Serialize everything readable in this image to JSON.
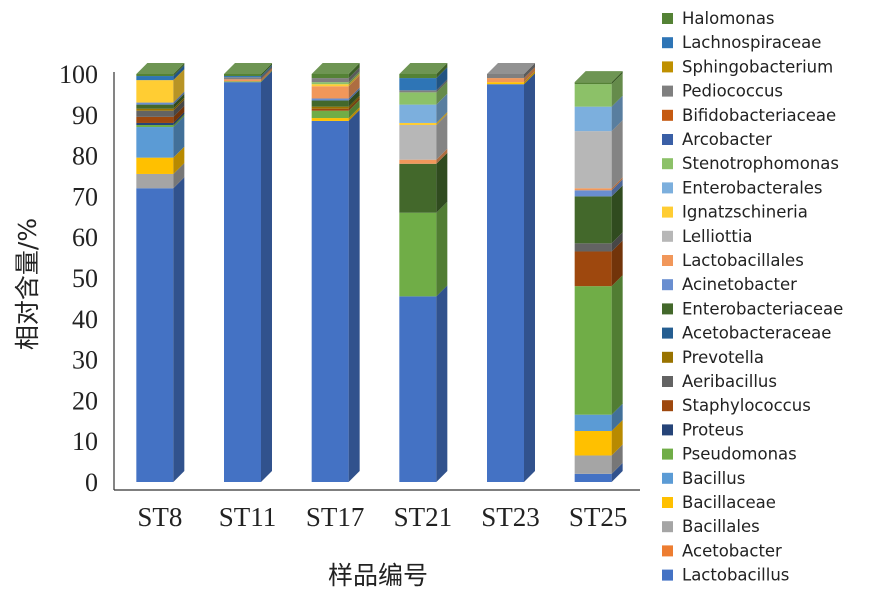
{
  "chart_data": {
    "type": "bar",
    "stacked": true,
    "style": "3d-column",
    "title": "",
    "xlabel": "样品编号",
    "ylabel": "相对含量/%",
    "ylim": [
      0,
      100
    ],
    "yticks": [
      0,
      10,
      20,
      30,
      40,
      50,
      60,
      70,
      80,
      90,
      100
    ],
    "grid": false,
    "legend_position": "right",
    "categories": [
      "ST8",
      "ST11",
      "ST17",
      "ST21",
      "ST23",
      "ST25"
    ],
    "series": [
      {
        "name": "Lactobacillus",
        "color": "#4472C4",
        "values": [
          72,
          98,
          88.5,
          45.5,
          97.5,
          2
        ]
      },
      {
        "name": "Acetobacter",
        "color": "#ED7D31",
        "values": [
          0,
          0,
          0,
          0,
          0,
          0
        ]
      },
      {
        "name": "Bacillales",
        "color": "#A5A5A5",
        "values": [
          3.5,
          0,
          0,
          0,
          0,
          4.5
        ]
      },
      {
        "name": "Bacillaceae",
        "color": "#FFC000",
        "values": [
          4,
          0,
          0.7,
          0,
          0.5,
          6
        ]
      },
      {
        "name": "Bacillus",
        "color": "#5B9BD5",
        "values": [
          7.5,
          0,
          0,
          0,
          0,
          4
        ]
      },
      {
        "name": "Pseudomonas",
        "color": "#70AD47",
        "values": [
          0.5,
          0.2,
          1.8,
          20.5,
          0,
          31.5
        ]
      },
      {
        "name": "Proteus",
        "color": "#264478",
        "values": [
          0.5,
          0,
          0,
          0,
          0,
          0
        ]
      },
      {
        "name": "Staphylococcus",
        "color": "#9E480E",
        "values": [
          1.5,
          0,
          0.5,
          0,
          0,
          8.5
        ]
      },
      {
        "name": "Aeribacillus",
        "color": "#636363",
        "values": [
          1.5,
          0,
          0,
          0,
          0,
          2
        ]
      },
      {
        "name": "Prevotella",
        "color": "#997300",
        "values": [
          0.5,
          0,
          0.5,
          0,
          0,
          0
        ]
      },
      {
        "name": "Acetobacteraceae",
        "color": "#255E91",
        "values": [
          0,
          0,
          0,
          0,
          0,
          0
        ]
      },
      {
        "name": "Enterobacteriaceae",
        "color": "#43682B",
        "values": [
          1,
          0,
          1.5,
          12,
          0,
          11.5
        ]
      },
      {
        "name": "Acinetobacter",
        "color": "#698ED0",
        "values": [
          0.5,
          0,
          0.5,
          0,
          0,
          1.5
        ]
      },
      {
        "name": "Lactobacillales",
        "color": "#F1975A",
        "values": [
          0,
          0.5,
          3,
          1,
          1,
          0.5
        ]
      },
      {
        "name": "Lelliottia",
        "color": "#B7B7B7",
        "values": [
          0,
          0,
          0,
          8.5,
          0,
          14
        ]
      },
      {
        "name": "Ignatzschineria",
        "color": "#FFCD33",
        "values": [
          5.5,
          0,
          0.5,
          0.5,
          0,
          0
        ]
      },
      {
        "name": "Enterobacterales",
        "color": "#7CAFDD",
        "values": [
          0,
          0,
          0,
          4.5,
          0,
          6
        ]
      },
      {
        "name": "Stenotrophomonas",
        "color": "#8CC168",
        "values": [
          0,
          0,
          0.5,
          3,
          0,
          5.5
        ]
      },
      {
        "name": "Arcobacter",
        "color": "#3A5FA6",
        "values": [
          0,
          0,
          0,
          0,
          0,
          0
        ]
      },
      {
        "name": "Bifidobacteriaceae",
        "color": "#C55A11",
        "values": [
          0,
          0,
          0,
          0,
          0,
          0
        ]
      },
      {
        "name": "Pediococcus",
        "color": "#7F7F7F",
        "values": [
          0,
          0.5,
          1,
          0.5,
          1,
          0
        ]
      },
      {
        "name": "Sphingobacterium",
        "color": "#BF9000",
        "values": [
          0,
          0,
          0,
          0,
          0,
          0
        ]
      },
      {
        "name": "Lachnospiraceae",
        "color": "#2E75B6",
        "values": [
          1,
          0.3,
          0,
          3,
          0,
          0
        ]
      },
      {
        "name": "Halomonas",
        "color": "#548235",
        "values": [
          0.5,
          0.5,
          1,
          1,
          0,
          0.5
        ]
      }
    ]
  }
}
